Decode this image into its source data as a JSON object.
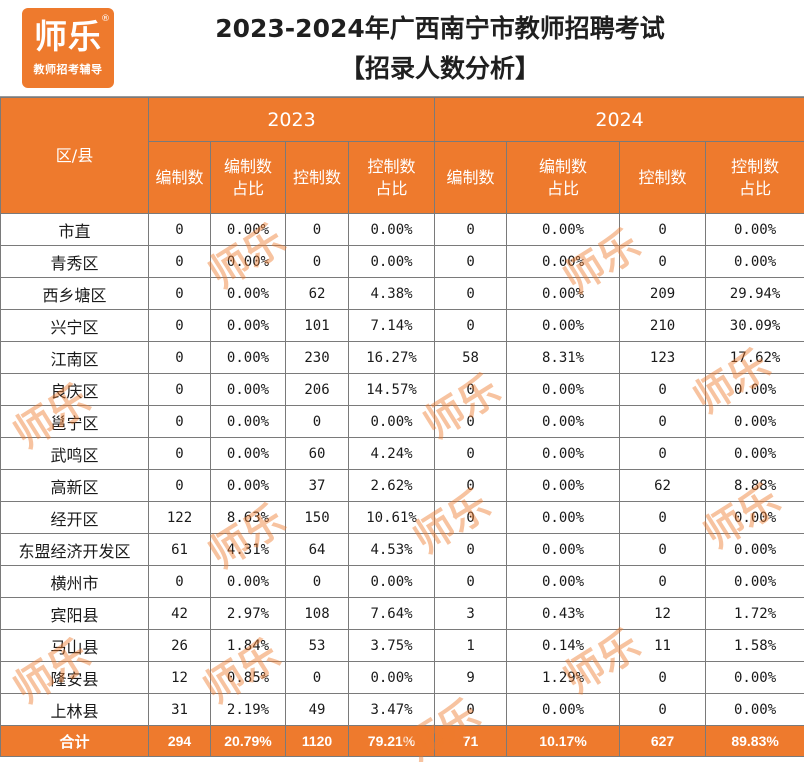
{
  "logo": {
    "main": "师乐",
    "reg": "®",
    "sub": "教师招考辅导"
  },
  "title": {
    "line1": "2023-2024年广西南宁市教师招聘考试",
    "line2": "【招录人数分析】"
  },
  "table": {
    "region_header": "区/县",
    "years": [
      "2023",
      "2024"
    ],
    "sub_headers": [
      {
        "l1": "编制数",
        "l2": ""
      },
      {
        "l1": "编制数",
        "l2": "占比"
      },
      {
        "l1": "控制数",
        "l2": ""
      },
      {
        "l1": "控制数",
        "l2": "占比"
      },
      {
        "l1": "编制数",
        "l2": ""
      },
      {
        "l1": "编制数",
        "l2": "占比"
      },
      {
        "l1": "控制数",
        "l2": ""
      },
      {
        "l1": "控制数",
        "l2": "占比"
      }
    ],
    "rows": [
      {
        "region": "市直",
        "values": [
          "0",
          "0.00%",
          "0",
          "0.00%",
          "0",
          "0.00%",
          "0",
          "0.00%"
        ]
      },
      {
        "region": "青秀区",
        "values": [
          "0",
          "0.00%",
          "0",
          "0.00%",
          "0",
          "0.00%",
          "0",
          "0.00%"
        ]
      },
      {
        "region": "西乡塘区",
        "values": [
          "0",
          "0.00%",
          "62",
          "4.38%",
          "0",
          "0.00%",
          "209",
          "29.94%"
        ]
      },
      {
        "region": "兴宁区",
        "values": [
          "0",
          "0.00%",
          "101",
          "7.14%",
          "0",
          "0.00%",
          "210",
          "30.09%"
        ]
      },
      {
        "region": "江南区",
        "values": [
          "0",
          "0.00%",
          "230",
          "16.27%",
          "58",
          "8.31%",
          "123",
          "17.62%"
        ]
      },
      {
        "region": "良庆区",
        "values": [
          "0",
          "0.00%",
          "206",
          "14.57%",
          "0",
          "0.00%",
          "0",
          "0.00%"
        ]
      },
      {
        "region": "邕宁区",
        "values": [
          "0",
          "0.00%",
          "0",
          "0.00%",
          "0",
          "0.00%",
          "0",
          "0.00%"
        ]
      },
      {
        "region": "武鸣区",
        "values": [
          "0",
          "0.00%",
          "60",
          "4.24%",
          "0",
          "0.00%",
          "0",
          "0.00%"
        ]
      },
      {
        "region": "高新区",
        "values": [
          "0",
          "0.00%",
          "37",
          "2.62%",
          "0",
          "0.00%",
          "62",
          "8.88%"
        ]
      },
      {
        "region": "经开区",
        "values": [
          "122",
          "8.63%",
          "150",
          "10.61%",
          "0",
          "0.00%",
          "0",
          "0.00%"
        ]
      },
      {
        "region": "东盟经济开发区",
        "values": [
          "61",
          "4.31%",
          "64",
          "4.53%",
          "0",
          "0.00%",
          "0",
          "0.00%"
        ]
      },
      {
        "region": "横州市",
        "values": [
          "0",
          "0.00%",
          "0",
          "0.00%",
          "0",
          "0.00%",
          "0",
          "0.00%"
        ]
      },
      {
        "region": "宾阳县",
        "values": [
          "42",
          "2.97%",
          "108",
          "7.64%",
          "3",
          "0.43%",
          "12",
          "1.72%"
        ]
      },
      {
        "region": "马山县",
        "values": [
          "26",
          "1.84%",
          "53",
          "3.75%",
          "1",
          "0.14%",
          "11",
          "1.58%"
        ]
      },
      {
        "region": "隆安县",
        "values": [
          "12",
          "0.85%",
          "0",
          "0.00%",
          "9",
          "1.29%",
          "0",
          "0.00%"
        ]
      },
      {
        "region": "上林县",
        "values": [
          "31",
          "2.19%",
          "49",
          "3.47%",
          "0",
          "0.00%",
          "0",
          "0.00%"
        ]
      }
    ],
    "total": {
      "region": "合计",
      "values": [
        "294",
        "20.79%",
        "1120",
        "79.21%",
        "71",
        "10.17%",
        "627",
        "89.83%"
      ]
    }
  },
  "watermark_text": "师乐",
  "colors": {
    "accent": "#ee7a2d",
    "grid": "#7a7a7a",
    "text": "#1a1a1a"
  }
}
